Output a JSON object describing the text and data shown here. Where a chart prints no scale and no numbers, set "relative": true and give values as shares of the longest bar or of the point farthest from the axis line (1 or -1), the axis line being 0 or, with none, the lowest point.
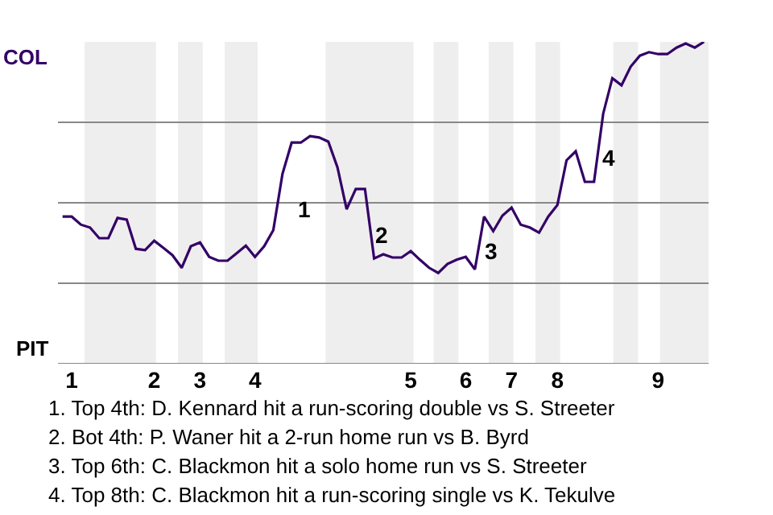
{
  "chart_data": {
    "type": "line",
    "relative": true,
    "categories": [
      null,
      "1",
      null,
      null,
      null,
      null,
      null,
      null,
      null,
      null,
      "2",
      null,
      null,
      null,
      null,
      "3",
      null,
      null,
      null,
      null,
      null,
      "4",
      null,
      null,
      null,
      null,
      null,
      null,
      null,
      null,
      null,
      null,
      null,
      null,
      null,
      null,
      null,
      null,
      "5",
      null,
      null,
      null,
      null,
      null,
      "6",
      null,
      null,
      null,
      null,
      "7",
      null,
      null,
      null,
      null,
      "8",
      null,
      null,
      null,
      null,
      null,
      null,
      null,
      null,
      null,
      null,
      "9",
      null,
      null,
      null,
      null,
      null
    ],
    "series": [
      {
        "color": "#330066",
        "values": [
          0.457,
          0.457,
          0.432,
          0.423,
          0.39,
          0.39,
          0.453,
          0.448,
          0.357,
          0.353,
          0.382,
          0.36,
          0.337,
          0.298,
          0.365,
          0.377,
          0.332,
          0.32,
          0.32,
          0.343,
          0.367,
          0.332,
          0.365,
          0.415,
          0.59,
          0.687,
          0.687,
          0.707,
          0.703,
          0.69,
          0.61,
          0.48,
          0.543,
          0.543,
          0.327,
          0.34,
          0.33,
          0.33,
          0.35,
          0.323,
          0.298,
          0.282,
          0.31,
          0.323,
          0.332,
          0.293,
          0.457,
          0.412,
          0.46,
          0.485,
          0.432,
          0.423,
          0.407,
          0.457,
          0.493,
          0.632,
          0.66,
          0.565,
          0.565,
          0.777,
          0.887,
          0.865,
          0.923,
          0.957,
          0.968,
          0.962,
          0.962,
          0.982,
          0.995,
          0.982,
          1
        ]
      }
    ],
    "grid": "y",
    "annotations": [
      "1",
      "2",
      "3",
      "4",
      "COL",
      "PIT",
      "1. Top 4th: D. Kennard hit a run-scoring double vs S. Streeter",
      "2. Bot 4th: P. Waner hit a 2-run home run vs B. Byrd",
      "3. Top 6th: C. Blackmon hit a solo home run vs S. Streeter",
      "4. Top 8th: C. Blackmon hit a run-scoring single vs K. Tekulve"
    ]
  }
}
